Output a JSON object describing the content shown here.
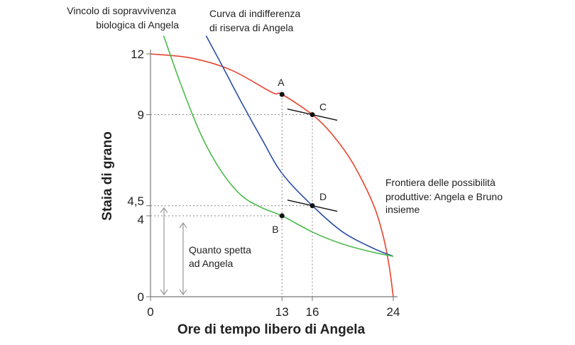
{
  "chart_data": {
    "type": "line",
    "xlabel": "Ore di tempo libero di Angela",
    "ylabel": "Staia di grano",
    "xlim": [
      0,
      24
    ],
    "ylim": [
      0,
      12
    ],
    "x_ticks": [
      {
        "value": 0,
        "label": "0"
      },
      {
        "value": 13,
        "label": "13"
      },
      {
        "value": 16,
        "label": "16"
      },
      {
        "value": 24,
        "label": "24"
      }
    ],
    "y_ticks": [
      {
        "value": 0,
        "label": "0"
      },
      {
        "value": 4,
        "label": "4"
      },
      {
        "value": 4.5,
        "label": "4,5"
      },
      {
        "value": 9,
        "label": "9"
      },
      {
        "value": 12,
        "label": "12"
      }
    ],
    "series": [
      {
        "name": "Frontiera delle possibilità produttive: Angela e Bruno insieme",
        "color": "#e8432e",
        "points": [
          [
            0,
            12
          ],
          [
            4,
            11.8
          ],
          [
            8,
            11.2
          ],
          [
            12,
            10.1
          ],
          [
            13,
            10
          ],
          [
            16,
            9
          ],
          [
            18,
            8
          ],
          [
            20,
            6.6
          ],
          [
            22,
            4.6
          ],
          [
            23,
            3
          ],
          [
            23.6,
            1.5
          ],
          [
            24,
            0
          ]
        ]
      },
      {
        "name": "Curva di indifferenza di riserva di Angela",
        "color": "#2b4fa8",
        "points": [
          [
            5.5,
            12.9
          ],
          [
            7,
            11.5
          ],
          [
            9,
            9.6
          ],
          [
            11,
            7.8
          ],
          [
            13,
            6.1
          ],
          [
            16,
            4.5
          ],
          [
            19,
            3.2
          ],
          [
            22,
            2.4
          ],
          [
            24,
            2
          ]
        ]
      },
      {
        "name": "Vincolo di sopravvivenza biologica di Angela",
        "color": "#4cbb4c",
        "points": [
          [
            1.3,
            12.9
          ],
          [
            3,
            10.5
          ],
          [
            5,
            8
          ],
          [
            7,
            6.2
          ],
          [
            9,
            5
          ],
          [
            11,
            4.4
          ],
          [
            13,
            4
          ],
          [
            16,
            3.2
          ],
          [
            19,
            2.6
          ],
          [
            22,
            2.2
          ],
          [
            24,
            2
          ]
        ]
      }
    ],
    "points": [
      {
        "label": "A",
        "x": 13,
        "y": 10
      },
      {
        "label": "C",
        "x": 16,
        "y": 9
      },
      {
        "label": "D",
        "x": 16,
        "y": 4.5
      },
      {
        "label": "B",
        "x": 13,
        "y": 4
      }
    ],
    "annotations": {
      "survival_line1": "Vincolo di sopravvivenza",
      "survival_line2": "biologica di Angela",
      "indiff_line1": "Curva di indifferenza",
      "indiff_line2": "di riserva di Angela",
      "frontier_line1": "Frontiera delle possibilità",
      "frontier_line2": "produttive: Angela e Bruno",
      "frontier_line3": "insieme",
      "share_line1": "Quanto spetta",
      "share_line2": "ad Angela"
    },
    "grid": false
  }
}
